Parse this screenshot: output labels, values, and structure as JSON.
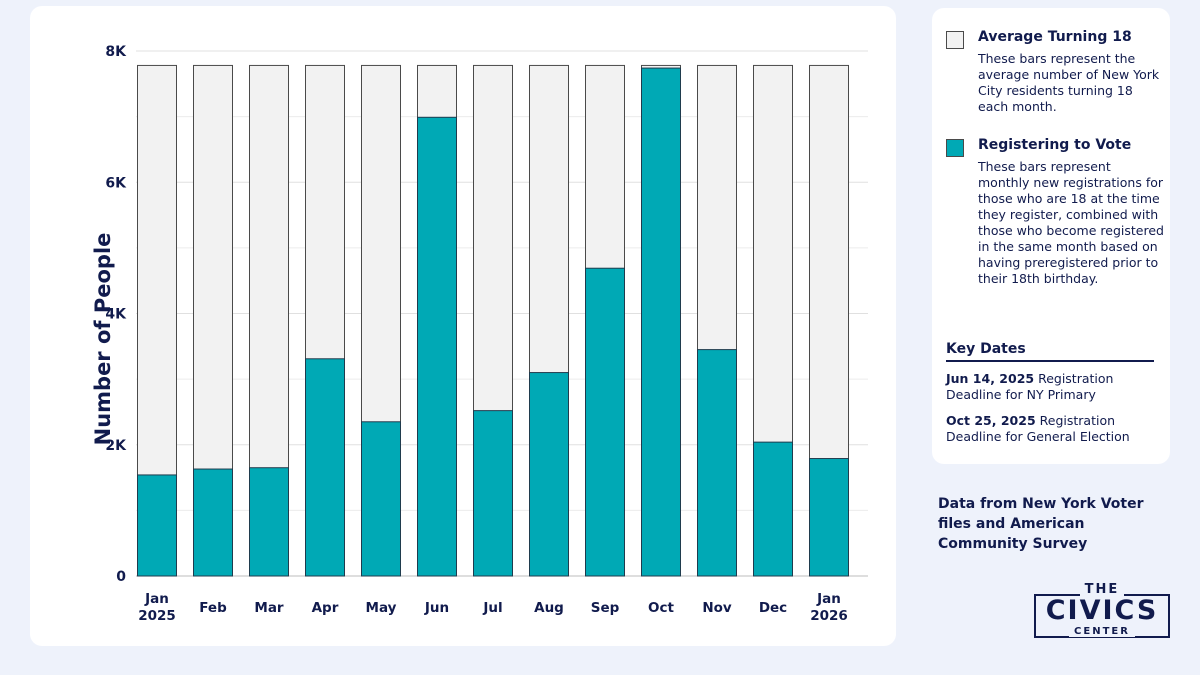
{
  "chart_data": {
    "type": "bar",
    "title": "",
    "xlabel": "",
    "ylabel": "Number of People",
    "ylim": [
      0,
      8000
    ],
    "yticks": [
      0,
      2000,
      4000,
      6000,
      8000
    ],
    "ytick_labels": [
      "0",
      "2K",
      "4K",
      "6K",
      "8K"
    ],
    "grid": true,
    "categories": [
      "Jan 2025",
      "Feb",
      "Mar",
      "Apr",
      "May",
      "Jun",
      "Jul",
      "Aug",
      "Sep",
      "Oct",
      "Nov",
      "Dec",
      "Jan 2026"
    ],
    "category_labels": [
      [
        "Jan",
        "2025"
      ],
      [
        "Feb"
      ],
      [
        "Mar"
      ],
      [
        "Apr"
      ],
      [
        "May"
      ],
      [
        "Jun"
      ],
      [
        "Jul"
      ],
      [
        "Aug"
      ],
      [
        "Sep"
      ],
      [
        "Oct"
      ],
      [
        "Nov"
      ],
      [
        "Dec"
      ],
      [
        "Jan",
        "2026"
      ]
    ],
    "series": [
      {
        "name": "Average Turning 18",
        "color": "#f2f2f2",
        "values": [
          7780,
          7780,
          7780,
          7780,
          7780,
          7780,
          7780,
          7780,
          7780,
          7780,
          7780,
          7780,
          7780
        ]
      },
      {
        "name": "Registering to Vote",
        "color": "#00a9b5",
        "values": [
          1540,
          1630,
          1650,
          3310,
          2350,
          6990,
          2520,
          3100,
          4690,
          7740,
          3450,
          2040,
          1790
        ]
      }
    ]
  },
  "legend": {
    "items": [
      {
        "label": "Average Turning 18",
        "description": "These bars represent the average number of New York City residents turning 18 each month."
      },
      {
        "label": "Registering to Vote",
        "description": "These bars represent monthly new registrations for those who are 18 at the time they register, combined with those who become registered in the same month based on having preregistered prior to their 18th birthday."
      }
    ],
    "key_dates_title": "Key Dates",
    "key_dates": [
      {
        "date": "Jun 14, 2025",
        "text": "Registration Deadline for NY Primary"
      },
      {
        "date": "Oct 25, 2025",
        "text": "Registration Deadline for General Election"
      }
    ]
  },
  "source_note": "Data from New York Voter files and American Community Survey",
  "logo": {
    "top": "THE",
    "main": "CIVICS",
    "bottom": "CENTER"
  },
  "colors": {
    "text": "#111b4d",
    "accent": "#00a9b5",
    "background": "#eef2fb",
    "grey_bar": "#f2f2f2"
  }
}
